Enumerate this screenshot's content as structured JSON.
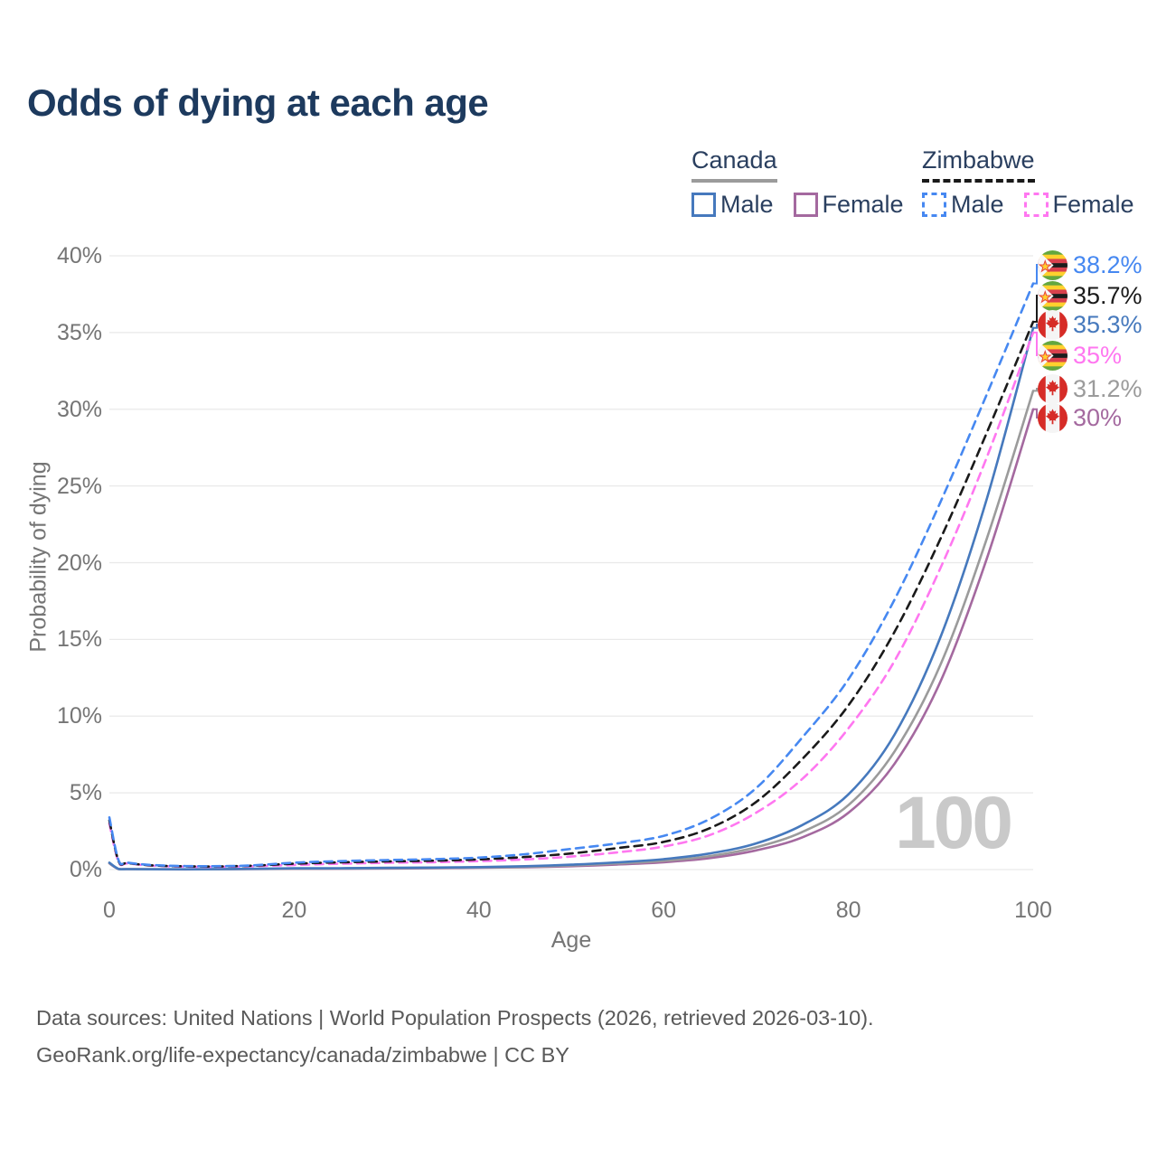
{
  "title": "Odds of dying at each age",
  "watermark": "100",
  "footer": {
    "line1": "Data sources: United Nations | World Population Prospects (2026, retrieved 2026-03-10).",
    "line2": "GeoRank.org/life-expectancy/canada/zimbabwe | CC BY"
  },
  "colors": {
    "canada_male": "#4679bd",
    "canada_female": "#a4699f",
    "canada_all": "#9b9b9b",
    "zimbabwe_male": "#4688f1",
    "zimbabwe_female": "#ff77f0",
    "zimbabwe_all": "#1a1a1a",
    "title_text": "#1d3a5e",
    "legend_text": "#2a3f5f",
    "axis_text": "#757575",
    "grid": "#e9e9e9",
    "watermark_text": "#c9c9c9",
    "footer_text": "#595959"
  },
  "legend": {
    "groups": [
      {
        "country": "Canada",
        "line_style": "solid",
        "items": [
          {
            "label": "Male",
            "color_key": "canada_male",
            "dashed": false
          },
          {
            "label": "Female",
            "color_key": "canada_female",
            "dashed": false
          }
        ]
      },
      {
        "country": "Zimbabwe",
        "line_style": "dashed",
        "items": [
          {
            "label": "Male",
            "color_key": "zimbabwe_male",
            "dashed": true
          },
          {
            "label": "Female",
            "color_key": "zimbabwe_female",
            "dashed": true
          }
        ]
      }
    ]
  },
  "chart_data": {
    "type": "line",
    "title": "Odds of dying at each age",
    "xlabel": "Age",
    "ylabel": "Probability of dying",
    "xlim": [
      0,
      100
    ],
    "ylim": [
      0,
      40
    ],
    "grid": "horizontal",
    "legend_position": "top-right",
    "x_ticks": [
      0,
      20,
      40,
      60,
      80,
      100
    ],
    "x_tick_labels": [
      "0",
      "20",
      "40",
      "60",
      "80",
      "100"
    ],
    "y_ticks": [
      0,
      5,
      10,
      15,
      20,
      25,
      30,
      35,
      40
    ],
    "y_tick_labels": [
      "0%",
      "5%",
      "10%",
      "15%",
      "20%",
      "25%",
      "30%",
      "35%",
      "40%"
    ],
    "ages": [
      0,
      1,
      2,
      5,
      10,
      15,
      20,
      25,
      30,
      35,
      40,
      45,
      50,
      55,
      60,
      65,
      70,
      75,
      80,
      85,
      90,
      95,
      100
    ],
    "series": [
      {
        "id": "zimbabwe_male",
        "name": "Zimbabwe Male",
        "country": "Zimbabwe",
        "sex": "Male",
        "flag": "zimbabwe",
        "dashed": true,
        "color_key": "zimbabwe_male",
        "end_label": "38.2%",
        "end_value": 38.2,
        "values": [
          3.4,
          0.6,
          0.45,
          0.28,
          0.22,
          0.26,
          0.45,
          0.55,
          0.62,
          0.68,
          0.78,
          1.0,
          1.35,
          1.7,
          2.2,
          3.3,
          5.3,
          8.6,
          12.4,
          17.6,
          24.0,
          31.0,
          38.2
        ]
      },
      {
        "id": "zimbabwe_all",
        "name": "Zimbabwe (both sexes)",
        "country": "Zimbabwe",
        "sex": "Both",
        "flag": "zimbabwe",
        "dashed": true,
        "color_key": "zimbabwe_all",
        "end_label": "35.7%",
        "end_value": 35.7,
        "values": [
          3.2,
          0.55,
          0.42,
          0.26,
          0.2,
          0.24,
          0.38,
          0.47,
          0.53,
          0.58,
          0.66,
          0.82,
          1.05,
          1.4,
          1.8,
          2.7,
          4.4,
          7.2,
          10.7,
          15.5,
          21.6,
          28.5,
          35.7
        ]
      },
      {
        "id": "canada_male",
        "name": "Canada Male",
        "country": "Canada",
        "sex": "Male",
        "flag": "canada",
        "dashed": false,
        "color_key": "canada_male",
        "end_label": "35.3%",
        "end_value": 35.3,
        "values": [
          0.45,
          0.04,
          0.03,
          0.02,
          0.02,
          0.05,
          0.08,
          0.09,
          0.11,
          0.13,
          0.16,
          0.22,
          0.32,
          0.47,
          0.68,
          1.05,
          1.7,
          2.9,
          4.9,
          8.8,
          15.2,
          24.2,
          35.3
        ]
      },
      {
        "id": "zimbabwe_female",
        "name": "Zimbabwe Female",
        "country": "Zimbabwe",
        "sex": "Female",
        "flag": "zimbabwe",
        "dashed": true,
        "color_key": "zimbabwe_female",
        "end_label": "35%",
        "end_value": 35.0,
        "values": [
          3.0,
          0.5,
          0.4,
          0.24,
          0.18,
          0.21,
          0.3,
          0.38,
          0.44,
          0.48,
          0.55,
          0.66,
          0.85,
          1.12,
          1.5,
          2.25,
          3.7,
          5.9,
          9.2,
          13.6,
          19.7,
          26.9,
          35.0
        ]
      },
      {
        "id": "canada_all",
        "name": "Canada (both sexes)",
        "country": "Canada",
        "sex": "Both",
        "flag": "canada",
        "dashed": false,
        "color_key": "canada_all",
        "end_label": "31.2%",
        "end_value": 31.2,
        "values": [
          0.42,
          0.035,
          0.027,
          0.018,
          0.018,
          0.04,
          0.06,
          0.07,
          0.09,
          0.11,
          0.14,
          0.18,
          0.27,
          0.4,
          0.57,
          0.88,
          1.45,
          2.45,
          4.2,
          7.7,
          13.4,
          21.6,
          31.2
        ]
      },
      {
        "id": "canada_female",
        "name": "Canada Female",
        "country": "Canada",
        "sex": "Female",
        "flag": "canada",
        "dashed": false,
        "color_key": "canada_female",
        "end_label": "30%",
        "end_value": 30.0,
        "values": [
          0.4,
          0.03,
          0.025,
          0.016,
          0.016,
          0.03,
          0.045,
          0.055,
          0.07,
          0.09,
          0.12,
          0.15,
          0.22,
          0.33,
          0.48,
          0.75,
          1.25,
          2.1,
          3.7,
          6.9,
          12.3,
          20.3,
          30.0
        ]
      }
    ]
  }
}
